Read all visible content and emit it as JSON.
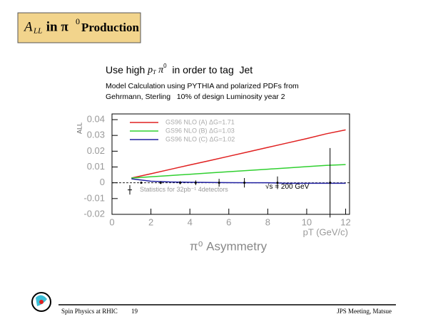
{
  "slide": {
    "title": {
      "a": "A",
      "sub": "LL",
      "mid": " in π",
      "sup": "0",
      "end": "Production"
    },
    "headline": {
      "pre": "Use high ",
      "p": "p",
      "psub": "T",
      "pi": " π",
      "pisup": "0",
      "post": "  in order to tag  Jet"
    },
    "notes": [
      "Model Calculation using PYTHIA and polarized PDFs from",
      "Gehrmann, Sterling   10% of design Luminosity year 2"
    ],
    "footer": {
      "left": "Spin Physics at RHIC",
      "page": "19",
      "right": "JPS Meeting, Matsue"
    }
  },
  "chart_data": {
    "type": "line",
    "title": "π⁰ Asymmetry",
    "x_label": "pT (GeV/c)",
    "y_label": "ALL",
    "xlim": [
      0,
      12.2
    ],
    "ylim": [
      -0.02,
      0.04
    ],
    "xticks": [
      0,
      2,
      4,
      6,
      8,
      10,
      12
    ],
    "yticks": [
      -0.02,
      -0.01,
      0,
      0.01,
      0.02,
      0.03,
      0.04
    ],
    "x": [
      1,
      2,
      3,
      4,
      5,
      6,
      7,
      8,
      9,
      10,
      11,
      12
    ],
    "series": [
      {
        "name": "GS96 NLO (A) ΔG=1.71",
        "color": "#e02020",
        "values": [
          0.003,
          0.0057,
          0.0085,
          0.0113,
          0.014,
          0.0168,
          0.0196,
          0.0224,
          0.0252,
          0.028,
          0.031,
          0.0335
        ]
      },
      {
        "name": "GS96 NLO (B) ΔG=1.03",
        "color": "#30d030",
        "values": [
          0.003,
          0.0038,
          0.0046,
          0.0054,
          0.0062,
          0.007,
          0.0078,
          0.0086,
          0.0094,
          0.0102,
          0.011,
          0.0115
        ]
      },
      {
        "name": "GS96 NLO (C) ΔG=1.02",
        "color": "#2020a0",
        "values": [
          0.0025,
          0.001,
          0.0005,
          0.0003,
          0.0002,
          0.0001,
          0,
          0,
          -0.0003,
          -0.0003,
          -0.0003,
          -0.0003
        ]
      }
    ],
    "stat": {
      "name": "Statistics for 32pb⁻¹ 4detectors",
      "x": [
        1.5,
        2.5,
        3.5,
        4.3,
        5.5,
        6.8,
        8.5,
        11.2
      ],
      "values": [
        0,
        0,
        0,
        0,
        0,
        0,
        0,
        0
      ],
      "errors": [
        0.0005,
        0.0008,
        0.001,
        0.0015,
        0.0025,
        0.003,
        0.004,
        0.022
      ],
      "color": "#000000"
    },
    "annotation": "√s = 200 GeV"
  }
}
